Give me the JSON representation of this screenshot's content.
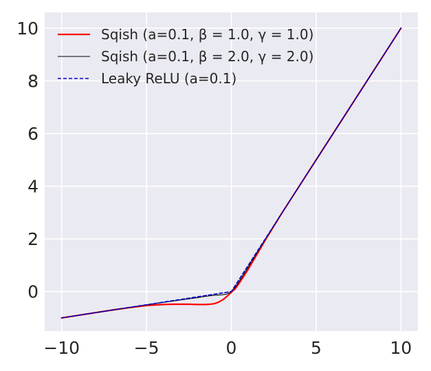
{
  "chart_data": {
    "type": "line",
    "title": "",
    "xlabel": "",
    "ylabel": "",
    "xlim": [
      -11,
      11
    ],
    "ylim": [
      -1.5,
      10.6
    ],
    "x_ticks": [
      -10,
      -5,
      0,
      5,
      10
    ],
    "x_tick_labels": [
      "−10",
      "−5",
      "0",
      "5",
      "10"
    ],
    "y_ticks": [
      0,
      2,
      4,
      6,
      8,
      10
    ],
    "y_tick_labels": [
      "0",
      "2",
      "4",
      "6",
      "8",
      "10"
    ],
    "grid": true,
    "legend_position": "top-left",
    "background_color": "#eaeaf2",
    "grid_color": "#ffffff",
    "series": [
      {
        "name": "Sqish (a=0.1, β = 1.0, γ = 1.0)",
        "color": "#ff0000",
        "style": "solid",
        "x": [
          -10,
          -9,
          -8,
          -7,
          -6,
          -5,
          -4,
          -3.5,
          -3,
          -2.5,
          -2,
          -1.5,
          -1.25,
          -1,
          -0.75,
          -0.5,
          -0.25,
          0,
          0.25,
          0.5,
          0.75,
          1,
          1.5,
          2,
          3,
          4,
          5,
          6,
          7,
          8,
          9,
          10
        ],
        "y": [
          -1.0,
          -0.9,
          -0.8,
          -0.7,
          -0.61,
          -0.53,
          -0.49,
          -0.48,
          -0.48,
          -0.48,
          -0.49,
          -0.49,
          -0.48,
          -0.46,
          -0.4,
          -0.31,
          -0.18,
          -0.03,
          0.12,
          0.35,
          0.6,
          0.85,
          1.4,
          1.95,
          3.0,
          4.0,
          5.0,
          6.0,
          7.0,
          8.0,
          9.0,
          10.0
        ]
      },
      {
        "name": "Sqish (a=0.1, β = 2.0, γ = 2.0)",
        "color": "#000000",
        "style": "thin",
        "x": [
          -10,
          -8,
          -6,
          -4,
          -3,
          -2,
          -1.5,
          -1,
          -0.5,
          -0.25,
          0,
          0.25,
          0.5,
          1,
          1.5,
          2,
          3,
          4,
          5,
          6,
          7,
          8,
          9,
          10
        ],
        "y": [
          -1.0,
          -0.8,
          -0.6,
          -0.41,
          -0.32,
          -0.23,
          -0.18,
          -0.14,
          -0.12,
          -0.09,
          0.0,
          0.18,
          0.42,
          0.93,
          1.46,
          1.98,
          3.0,
          4.0,
          5.0,
          6.0,
          7.0,
          8.0,
          9.0,
          10.0
        ]
      },
      {
        "name": "Leaky ReLU (a=0.1)",
        "color": "#0000cc",
        "style": "dashed",
        "x": [
          -10,
          0,
          10
        ],
        "y": [
          -1.0,
          0.0,
          10.0
        ]
      }
    ]
  }
}
